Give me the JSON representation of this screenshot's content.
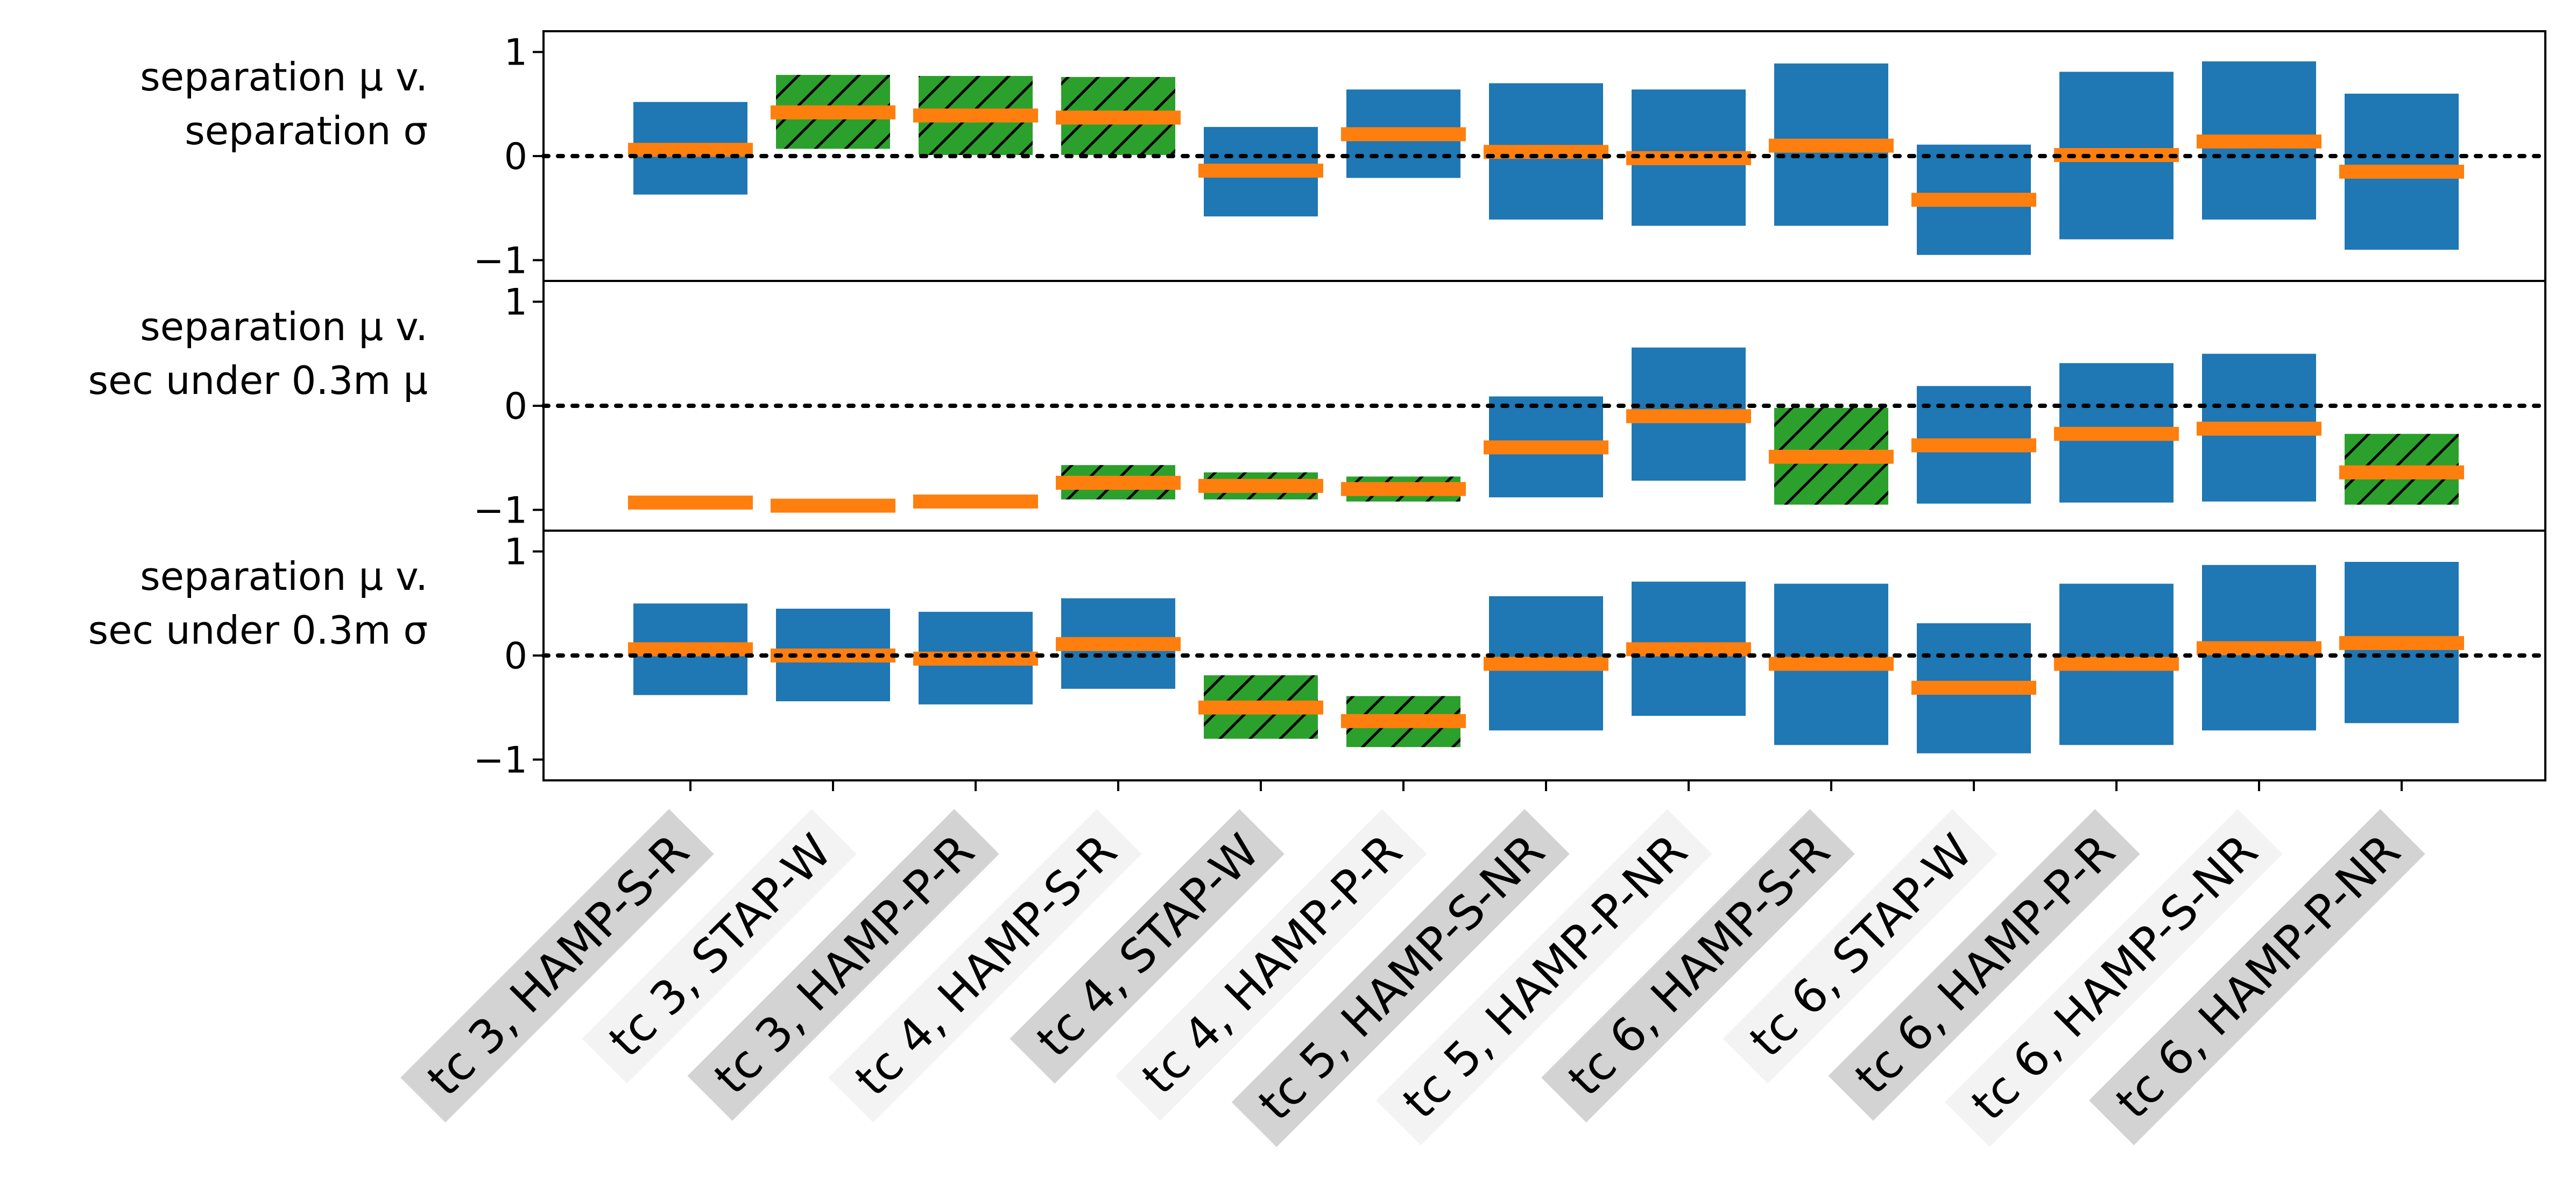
{
  "chart_data": {
    "type": "bar",
    "categories": [
      "tc 3, HAMP-S-R",
      "tc 3, STAP-W",
      "tc 3, HAMP-P-R",
      "tc 4, HAMP-S-R",
      "tc 4, STAP-W",
      "tc 4, HAMP-P-R",
      "tc 5, HAMP-S-NR",
      "tc 5, HAMP-P-NR",
      "tc 6, HAMP-S-R",
      "tc 6, STAP-W",
      "tc 6, HAMP-P-R",
      "tc 6, HAMP-S-NR",
      "tc 6, HAMP-P-NR"
    ],
    "category_label_shading": [
      "shaded",
      "light",
      "shaded",
      "light",
      "shaded",
      "light",
      "shaded",
      "light",
      "shaded",
      "light",
      "shaded",
      "light",
      "shaded"
    ],
    "ylim": [
      -1.2,
      1.2
    ],
    "yticks": [
      -1,
      0,
      1
    ],
    "ytick_labels": [
      "−1",
      "0",
      "1"
    ],
    "reference_line": 0,
    "colors": {
      "interval_default": "#1f77b4",
      "interval_significant": "#2ca02c",
      "estimate": "#ff7f0e",
      "hatch": "#000000",
      "label_shaded": "#d3d3d3",
      "label_light": "#f3f3f3"
    },
    "panels": [
      {
        "label_line1": "separation μ v.",
        "label_line2": "separation σ",
        "intervals": [
          {
            "low": -0.37,
            "high": 0.52,
            "estimate": 0.06,
            "significant": false
          },
          {
            "low": 0.07,
            "high": 0.78,
            "estimate": 0.42,
            "significant": true
          },
          {
            "low": 0.01,
            "high": 0.77,
            "estimate": 0.39,
            "significant": true
          },
          {
            "low": 0.01,
            "high": 0.76,
            "estimate": 0.37,
            "significant": true
          },
          {
            "low": -0.58,
            "high": 0.28,
            "estimate": -0.14,
            "significant": false
          },
          {
            "low": -0.21,
            "high": 0.64,
            "estimate": 0.21,
            "significant": false
          },
          {
            "low": -0.61,
            "high": 0.7,
            "estimate": 0.04,
            "significant": false
          },
          {
            "low": -0.67,
            "high": 0.64,
            "estimate": -0.02,
            "significant": false
          },
          {
            "low": -0.67,
            "high": 0.89,
            "estimate": 0.1,
            "significant": false
          },
          {
            "low": -0.95,
            "high": 0.11,
            "estimate": -0.42,
            "significant": false
          },
          {
            "low": -0.8,
            "high": 0.81,
            "estimate": 0.01,
            "significant": false
          },
          {
            "low": -0.61,
            "high": 0.91,
            "estimate": 0.14,
            "significant": false
          },
          {
            "low": -0.9,
            "high": 0.6,
            "estimate": -0.15,
            "significant": false
          }
        ]
      },
      {
        "label_line1": "separation μ v.",
        "label_line2": "sec under 0.3m μ",
        "intervals": [
          {
            "low": -0.93,
            "high": -0.93,
            "estimate": -0.93,
            "significant": false
          },
          {
            "low": -0.96,
            "high": -0.96,
            "estimate": -0.96,
            "significant": false
          },
          {
            "low": -0.92,
            "high": -0.92,
            "estimate": -0.92,
            "significant": false
          },
          {
            "low": -0.9,
            "high": -0.57,
            "estimate": -0.74,
            "significant": true
          },
          {
            "low": -0.9,
            "high": -0.64,
            "estimate": -0.77,
            "significant": true
          },
          {
            "low": -0.92,
            "high": -0.68,
            "estimate": -0.8,
            "significant": true
          },
          {
            "low": -0.88,
            "high": 0.09,
            "estimate": -0.4,
            "significant": false
          },
          {
            "low": -0.72,
            "high": 0.56,
            "estimate": -0.1,
            "significant": false
          },
          {
            "low": -0.95,
            "high": -0.02,
            "estimate": -0.49,
            "significant": true
          },
          {
            "low": -0.94,
            "high": 0.19,
            "estimate": -0.38,
            "significant": false
          },
          {
            "low": -0.93,
            "high": 0.41,
            "estimate": -0.27,
            "significant": false
          },
          {
            "low": -0.92,
            "high": 0.5,
            "estimate": -0.22,
            "significant": false
          },
          {
            "low": -0.95,
            "high": -0.27,
            "estimate": -0.64,
            "significant": true
          }
        ]
      },
      {
        "label_line1": "separation μ v.",
        "label_line2": "sec under 0.3m σ",
        "intervals": [
          {
            "low": -0.38,
            "high": 0.5,
            "estimate": 0.06,
            "significant": false
          },
          {
            "low": -0.44,
            "high": 0.45,
            "estimate": 0.0,
            "significant": false
          },
          {
            "low": -0.47,
            "high": 0.42,
            "estimate": -0.03,
            "significant": false
          },
          {
            "low": -0.32,
            "high": 0.55,
            "estimate": 0.11,
            "significant": false
          },
          {
            "low": -0.8,
            "high": -0.19,
            "estimate": -0.5,
            "significant": true
          },
          {
            "low": -0.88,
            "high": -0.39,
            "estimate": -0.63,
            "significant": true
          },
          {
            "low": -0.72,
            "high": 0.57,
            "estimate": -0.08,
            "significant": false
          },
          {
            "low": -0.58,
            "high": 0.71,
            "estimate": 0.06,
            "significant": false
          },
          {
            "low": -0.86,
            "high": 0.69,
            "estimate": -0.08,
            "significant": false
          },
          {
            "low": -0.94,
            "high": 0.31,
            "estimate": -0.31,
            "significant": false
          },
          {
            "low": -0.86,
            "high": 0.69,
            "estimate": -0.08,
            "significant": false
          },
          {
            "low": -0.72,
            "high": 0.87,
            "estimate": 0.07,
            "significant": false
          },
          {
            "low": -0.65,
            "high": 0.9,
            "estimate": 0.12,
            "significant": false
          }
        ]
      }
    ]
  }
}
